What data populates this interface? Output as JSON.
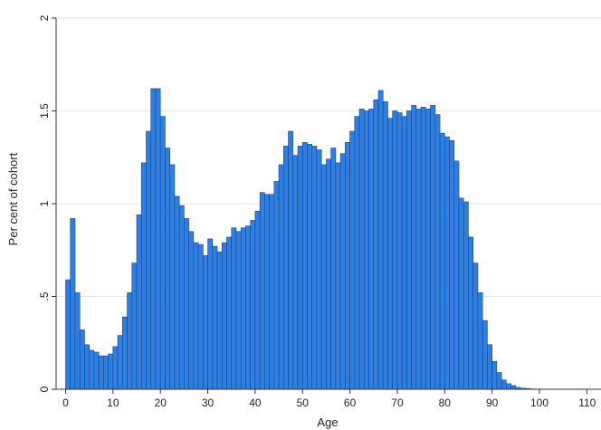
{
  "colors": {
    "bar_fill": "#2f7fe0",
    "bar_stroke": "#1a3f88",
    "grid": "#e6e6e6",
    "axis": "#333333"
  },
  "chart_data": {
    "type": "bar",
    "title": "",
    "xlabel": "Age",
    "ylabel": "Per cent of cohort",
    "xlim": [
      -1,
      111
    ],
    "ylim": [
      0,
      2
    ],
    "x_ticks": [
      0,
      10,
      20,
      30,
      40,
      50,
      60,
      70,
      80,
      90,
      100,
      110
    ],
    "y_ticks": [
      0,
      0.5,
      1,
      1.5,
      2
    ],
    "y_tick_labels": [
      "0",
      ".5",
      "1",
      "1.5",
      "2"
    ],
    "grid": "horizontal",
    "legend": "none",
    "bin_width": 1,
    "x": [
      0,
      1,
      2,
      3,
      4,
      5,
      6,
      7,
      8,
      9,
      10,
      11,
      12,
      13,
      14,
      15,
      16,
      17,
      18,
      19,
      20,
      21,
      22,
      23,
      24,
      25,
      26,
      27,
      28,
      29,
      30,
      31,
      32,
      33,
      34,
      35,
      36,
      37,
      38,
      39,
      40,
      41,
      42,
      43,
      44,
      45,
      46,
      47,
      48,
      49,
      50,
      51,
      52,
      53,
      54,
      55,
      56,
      57,
      58,
      59,
      60,
      61,
      62,
      63,
      64,
      65,
      66,
      67,
      68,
      69,
      70,
      71,
      72,
      73,
      74,
      75,
      76,
      77,
      78,
      79,
      80,
      81,
      82,
      83,
      84,
      85,
      86,
      87,
      88,
      89,
      90,
      91,
      92,
      93,
      94,
      95,
      96,
      97,
      98,
      99,
      100,
      101,
      102,
      103,
      104,
      105,
      106,
      107,
      108,
      109
    ],
    "values": [
      0.59,
      0.92,
      0.52,
      0.32,
      0.24,
      0.21,
      0.2,
      0.18,
      0.18,
      0.19,
      0.23,
      0.29,
      0.39,
      0.52,
      0.68,
      0.94,
      1.22,
      1.39,
      1.62,
      1.62,
      1.47,
      1.3,
      1.21,
      1.04,
      0.99,
      0.92,
      0.85,
      0.79,
      0.78,
      0.72,
      0.81,
      0.77,
      0.74,
      0.79,
      0.82,
      0.87,
      0.85,
      0.87,
      0.88,
      0.91,
      0.96,
      1.06,
      1.05,
      1.05,
      1.12,
      1.21,
      1.31,
      1.39,
      1.26,
      1.31,
      1.33,
      1.32,
      1.31,
      1.29,
      1.21,
      1.24,
      1.3,
      1.22,
      1.27,
      1.33,
      1.39,
      1.47,
      1.51,
      1.5,
      1.51,
      1.56,
      1.61,
      1.55,
      1.46,
      1.5,
      1.49,
      1.47,
      1.5,
      1.53,
      1.51,
      1.52,
      1.51,
      1.53,
      1.48,
      1.38,
      1.36,
      1.34,
      1.23,
      1.03,
      1.01,
      0.82,
      0.68,
      0.52,
      0.37,
      0.24,
      0.15,
      0.09,
      0.05,
      0.03,
      0.02,
      0.01,
      0.006,
      0.004,
      0.002,
      0.001,
      0.0005,
      0,
      0,
      0,
      0,
      0,
      0,
      0,
      0,
      0
    ]
  }
}
